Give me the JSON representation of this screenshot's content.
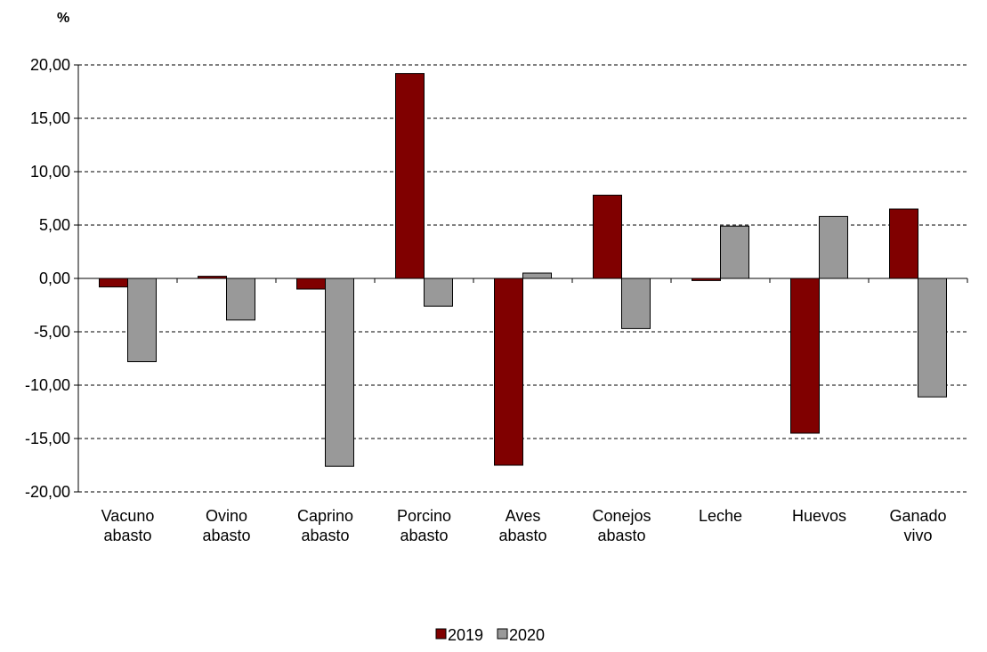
{
  "chart_data": {
    "type": "bar",
    "title": "",
    "ylabel": "%",
    "xlabel": "",
    "ylim": [
      -20,
      20
    ],
    "ytick_step": 5,
    "ytick_labels": [
      "20,00",
      "15,00",
      "10,00",
      "5,00",
      "0,00",
      "-5,00",
      "-10,00",
      "-15,00",
      "-20,00"
    ],
    "grid": true,
    "legend_position": "bottom",
    "categories": [
      [
        "Vacuno",
        "abasto"
      ],
      [
        "Ovino",
        "abasto"
      ],
      [
        "Caprino",
        "abasto"
      ],
      [
        "Porcino",
        "abasto"
      ],
      [
        "Aves",
        "abasto"
      ],
      [
        "Conejos",
        "abasto"
      ],
      [
        "Leche"
      ],
      [
        "Huevos"
      ],
      [
        "Ganado",
        "vivo"
      ]
    ],
    "series": [
      {
        "name": "2019",
        "color": "#800000",
        "values": [
          -0.8,
          0.2,
          -1.0,
          19.2,
          -17.5,
          7.8,
          -0.2,
          -14.5,
          6.5
        ]
      },
      {
        "name": "2020",
        "color": "#999999",
        "values": [
          -7.8,
          -3.9,
          -17.6,
          -2.6,
          0.5,
          -4.7,
          4.9,
          5.8,
          -11.1
        ]
      }
    ]
  }
}
